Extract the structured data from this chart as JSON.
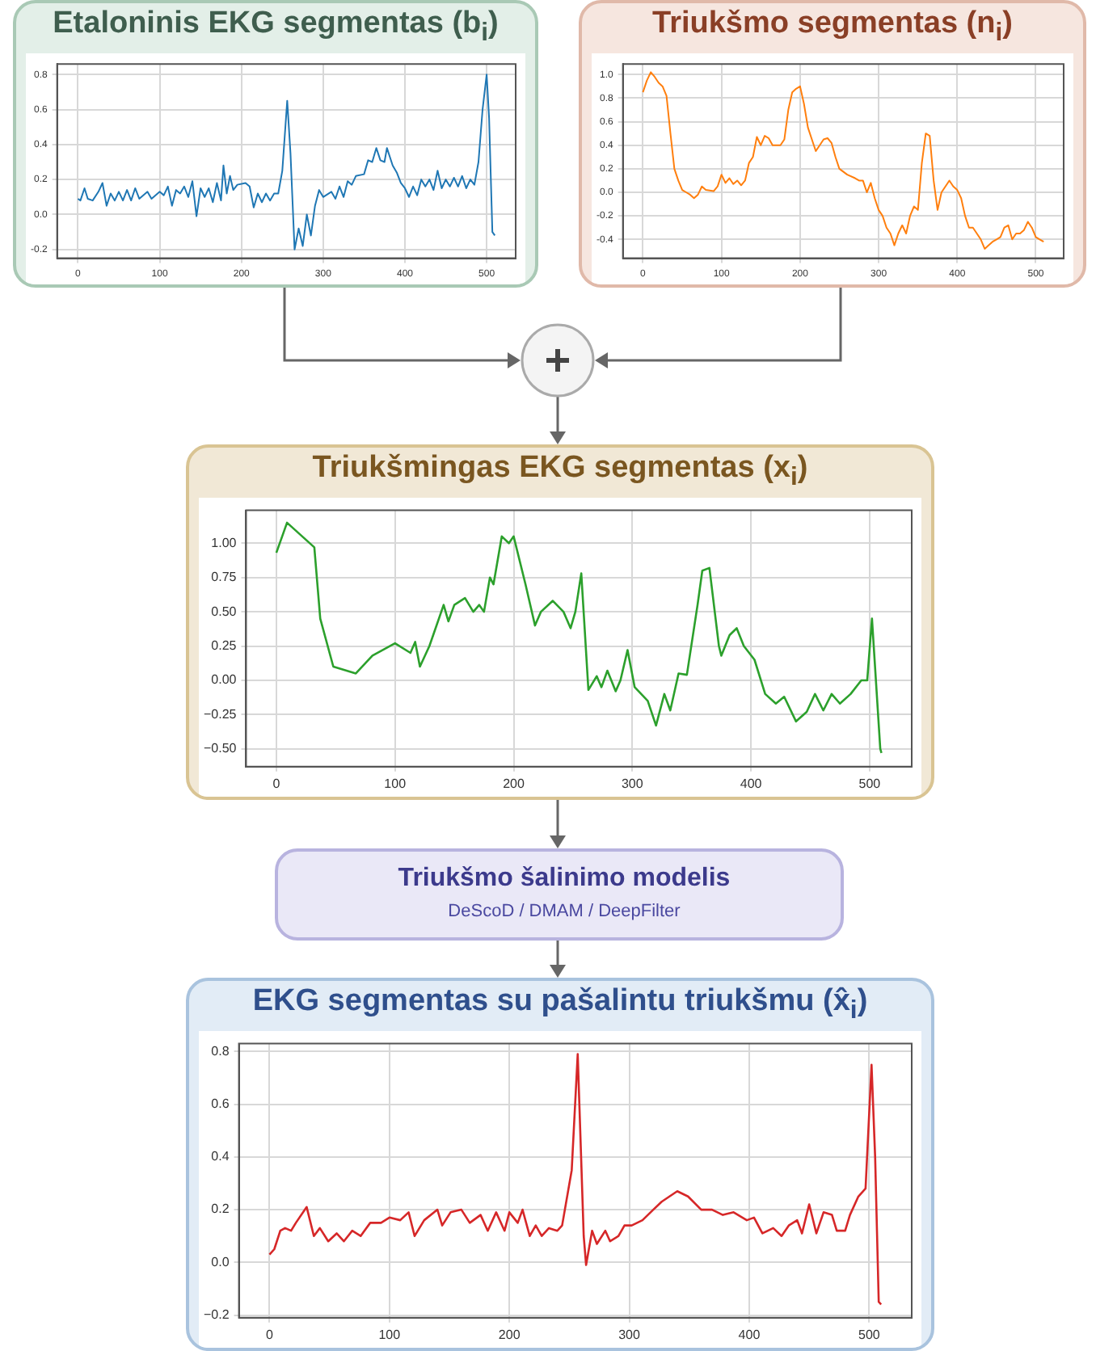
{
  "chart_data": [
    {
      "type": "line",
      "title": "Etaloninis EKG segmentas (b$_{i}$)",
      "xlim": [
        -25.5,
        535.5
      ],
      "xticks": [
        0,
        100,
        200,
        300,
        400,
        500
      ],
      "ylim": [
        -0.25,
        0.86
      ],
      "yticks": [
        {
          "value": -0.2,
          "label": "-0.2"
        },
        {
          "value": 0,
          "label": "0.0"
        },
        {
          "value": 0.2,
          "label": "0.2"
        },
        {
          "value": 0.4,
          "label": "0.4"
        },
        {
          "value": 0.6,
          "label": "0.6"
        },
        {
          "value": 0.8,
          "label": "0.8"
        }
      ],
      "grid": true,
      "marker": "none",
      "series": [
        {
          "color": "#1f77b4",
          "x": [
            0,
            3,
            8,
            12,
            18,
            25,
            30,
            35,
            40,
            45,
            50,
            55,
            60,
            65,
            70,
            75,
            85,
            90,
            100,
            105,
            110,
            115,
            120,
            125,
            130,
            135,
            140,
            145,
            150,
            155,
            160,
            165,
            170,
            175,
            178,
            182,
            186,
            190,
            195,
            205,
            210,
            215,
            220,
            225,
            230,
            235,
            240,
            245,
            250,
            256,
            260,
            265,
            270,
            275,
            280,
            285,
            290,
            295,
            300,
            310,
            315,
            320,
            325,
            330,
            335,
            340,
            350,
            355,
            360,
            365,
            370,
            375,
            378,
            385,
            390,
            395,
            400,
            405,
            410,
            415,
            420,
            425,
            430,
            435,
            440,
            445,
            450,
            455,
            460,
            465,
            470,
            475,
            480,
            485,
            490,
            495,
            500,
            503,
            507,
            510
          ],
          "values": [
            0.09,
            0.08,
            0.15,
            0.09,
            0.08,
            0.13,
            0.18,
            0.05,
            0.12,
            0.08,
            0.13,
            0.08,
            0.14,
            0.08,
            0.15,
            0.09,
            0.13,
            0.09,
            0.13,
            0.11,
            0.16,
            0.05,
            0.14,
            0.12,
            0.16,
            0.1,
            0.19,
            -0.01,
            0.15,
            0.1,
            0.15,
            0.07,
            0.18,
            0.08,
            0.28,
            0.12,
            0.22,
            0.14,
            0.17,
            0.18,
            0.16,
            0.04,
            0.12,
            0.07,
            0.12,
            0.08,
            0.12,
            0.12,
            0.25,
            0.65,
            0.35,
            -0.2,
            -0.08,
            -0.18,
            0.0,
            -0.12,
            0.05,
            0.14,
            0.1,
            0.13,
            0.09,
            0.16,
            0.1,
            0.19,
            0.17,
            0.22,
            0.23,
            0.31,
            0.3,
            0.38,
            0.31,
            0.3,
            0.38,
            0.28,
            0.24,
            0.18,
            0.15,
            0.1,
            0.16,
            0.11,
            0.2,
            0.16,
            0.2,
            0.14,
            0.25,
            0.15,
            0.2,
            0.16,
            0.21,
            0.16,
            0.22,
            0.15,
            0.2,
            0.17,
            0.3,
            0.6,
            0.8,
            0.55,
            -0.1,
            -0.12
          ]
        }
      ]
    },
    {
      "type": "line",
      "title": "Triukšmo segmentas (n$_{i}$)",
      "xlim": [
        -25.5,
        535.5
      ],
      "xticks": [
        0,
        100,
        200,
        300,
        400,
        500
      ],
      "ylim": [
        -0.56,
        1.09
      ],
      "yticks": [
        {
          "value": -0.4,
          "label": "-0.4"
        },
        {
          "value": -0.2,
          "label": "-0.2"
        },
        {
          "value": 0,
          "label": "0.0"
        },
        {
          "value": 0.2,
          "label": "0.2"
        },
        {
          "value": 0.4,
          "label": "0.4"
        },
        {
          "value": 0.6,
          "label": "0.6"
        },
        {
          "value": 0.8,
          "label": "0.8"
        },
        {
          "value": 1,
          "label": "1.0"
        }
      ],
      "grid": true,
      "marker": "none",
      "series": [
        {
          "color": "#ff7f0e",
          "x": [
            0,
            5,
            10,
            15,
            20,
            25,
            30,
            35,
            40,
            45,
            50,
            55,
            60,
            65,
            70,
            75,
            80,
            90,
            95,
            100,
            105,
            110,
            115,
            120,
            125,
            130,
            135,
            140,
            145,
            150,
            155,
            160,
            165,
            175,
            180,
            185,
            190,
            195,
            200,
            205,
            210,
            215,
            220,
            225,
            230,
            235,
            240,
            245,
            250,
            260,
            270,
            275,
            280,
            285,
            290,
            295,
            300,
            305,
            310,
            315,
            320,
            325,
            330,
            335,
            340,
            345,
            350,
            355,
            360,
            365,
            370,
            375,
            380,
            390,
            395,
            400,
            405,
            410,
            415,
            420,
            425,
            430,
            435,
            440,
            445,
            450,
            455,
            460,
            465,
            470,
            475,
            480,
            485,
            490,
            495,
            500,
            505,
            510
          ],
          "values": [
            0.85,
            0.95,
            1.02,
            0.98,
            0.93,
            0.9,
            0.82,
            0.5,
            0.2,
            0.1,
            0.02,
            0.0,
            -0.02,
            -0.05,
            -0.02,
            0.05,
            0.02,
            0.01,
            0.05,
            0.15,
            0.08,
            0.12,
            0.07,
            0.1,
            0.06,
            0.1,
            0.25,
            0.3,
            0.47,
            0.4,
            0.48,
            0.46,
            0.4,
            0.4,
            0.45,
            0.7,
            0.85,
            0.88,
            0.9,
            0.75,
            0.55,
            0.45,
            0.35,
            0.4,
            0.45,
            0.46,
            0.42,
            0.3,
            0.2,
            0.15,
            0.12,
            0.1,
            0.1,
            0.0,
            0.08,
            -0.05,
            -0.15,
            -0.2,
            -0.3,
            -0.35,
            -0.45,
            -0.35,
            -0.28,
            -0.35,
            -0.2,
            -0.12,
            -0.15,
            0.25,
            0.5,
            0.48,
            0.1,
            -0.15,
            0.0,
            0.1,
            0.05,
            0.02,
            -0.05,
            -0.2,
            -0.3,
            -0.3,
            -0.35,
            -0.4,
            -0.48,
            -0.45,
            -0.42,
            -0.4,
            -0.38,
            -0.3,
            -0.28,
            -0.4,
            -0.35,
            -0.35,
            -0.32,
            -0.25,
            -0.3,
            -0.38,
            -0.4,
            -0.42
          ]
        }
      ]
    },
    {
      "type": "line",
      "title": "Triukšmingas EKG segmentas (x$_{i}$)",
      "xlim": [
        -25.5,
        535.5
      ],
      "xticks": [
        0,
        100,
        200,
        300,
        400,
        500
      ],
      "ylim": [
        -0.63,
        1.24
      ],
      "yticks": [
        {
          "value": -0.5,
          "label": "−0.50"
        },
        {
          "value": -0.25,
          "label": "−0.25"
        },
        {
          "value": 0,
          "label": "0.00"
        },
        {
          "value": 0.25,
          "label": "0.25"
        },
        {
          "value": 0.5,
          "label": "0.50"
        },
        {
          "value": 0.75,
          "label": "0.75"
        },
        {
          "value": 1,
          "label": "1.00"
        }
      ],
      "grid": true,
      "marker": "none",
      "series": [
        {
          "color": "#2ca02c",
          "x": [
            0,
            9,
            32,
            37,
            48,
            67,
            81,
            100,
            113,
            117,
            121,
            129,
            141,
            145,
            150,
            159,
            166,
            171,
            175,
            180,
            183,
            190,
            196,
            200,
            210,
            218,
            223,
            233,
            242,
            248,
            252,
            257,
            263,
            270,
            274,
            279,
            286,
            290,
            296,
            302,
            313,
            320,
            327,
            332,
            339,
            346,
            355,
            359,
            365,
            373,
            375,
            382,
            388,
            394,
            403,
            412,
            421,
            428,
            438,
            447,
            454,
            461,
            468,
            475,
            484,
            493,
            498,
            502,
            509,
            510
          ],
          "values": [
            0.93,
            1.15,
            0.97,
            0.45,
            0.1,
            0.05,
            0.18,
            0.27,
            0.2,
            0.28,
            0.1,
            0.25,
            0.55,
            0.43,
            0.55,
            0.6,
            0.5,
            0.55,
            0.5,
            0.75,
            0.7,
            1.05,
            1.0,
            1.05,
            0.7,
            0.4,
            0.5,
            0.58,
            0.5,
            0.38,
            0.5,
            0.78,
            -0.07,
            0.03,
            -0.05,
            0.07,
            -0.08,
            0.0,
            0.22,
            -0.05,
            -0.15,
            -0.33,
            -0.1,
            -0.22,
            0.05,
            0.04,
            0.55,
            0.8,
            0.82,
            0.25,
            0.18,
            0.33,
            0.38,
            0.25,
            0.15,
            -0.1,
            -0.17,
            -0.12,
            -0.3,
            -0.23,
            -0.1,
            -0.22,
            -0.1,
            -0.17,
            -0.1,
            0.0,
            0.0,
            0.45,
            -0.5,
            -0.53
          ]
        }
      ]
    },
    {
      "type": "other",
      "title": "Triukšmo šalinimo modelis",
      "subtitle": "DeScoD / DMAM / DeepFilter"
    },
    {
      "type": "line",
      "title": "EKG segmentas su pašalintu triukšmu (x̂$_{i}$)",
      "xlim": [
        -25.5,
        535.5
      ],
      "xticks": [
        0,
        100,
        200,
        300,
        400,
        500
      ],
      "ylim": [
        -0.21,
        0.83
      ],
      "yticks": [
        {
          "value": -0.2,
          "label": "−0.2"
        },
        {
          "value": 0,
          "label": "0.0"
        },
        {
          "value": 0.2,
          "label": "0.2"
        },
        {
          "value": 0.4,
          "label": "0.4"
        },
        {
          "value": 0.6,
          "label": "0.6"
        },
        {
          "value": 0.8,
          "label": "0.8"
        }
      ],
      "grid": true,
      "marker": "none",
      "series": [
        {
          "color": "#d62728",
          "x": [
            0,
            4,
            9,
            13,
            18,
            22,
            31,
            37,
            42,
            49,
            56,
            62,
            69,
            76,
            84,
            93,
            100,
            109,
            116,
            121,
            129,
            140,
            144,
            151,
            160,
            167,
            176,
            182,
            189,
            196,
            200,
            207,
            211,
            217,
            222,
            227,
            233,
            240,
            244,
            252,
            257,
            262,
            264,
            269,
            273,
            280,
            284,
            291,
            296,
            302,
            311,
            320,
            327,
            340,
            349,
            360,
            369,
            378,
            387,
            398,
            404,
            411,
            420,
            427,
            433,
            440,
            444,
            450,
            456,
            462,
            469,
            473,
            480,
            484,
            491,
            497,
            502,
            505,
            508,
            510
          ],
          "values": [
            0.03,
            0.05,
            0.12,
            0.13,
            0.12,
            0.15,
            0.21,
            0.1,
            0.13,
            0.08,
            0.11,
            0.08,
            0.12,
            0.1,
            0.15,
            0.15,
            0.17,
            0.16,
            0.19,
            0.1,
            0.16,
            0.2,
            0.14,
            0.19,
            0.2,
            0.15,
            0.18,
            0.12,
            0.19,
            0.12,
            0.19,
            0.15,
            0.2,
            0.1,
            0.14,
            0.1,
            0.13,
            0.12,
            0.14,
            0.35,
            0.79,
            0.1,
            -0.01,
            0.12,
            0.07,
            0.12,
            0.08,
            0.1,
            0.14,
            0.14,
            0.16,
            0.2,
            0.23,
            0.27,
            0.25,
            0.2,
            0.2,
            0.18,
            0.19,
            0.16,
            0.17,
            0.11,
            0.13,
            0.1,
            0.14,
            0.16,
            0.11,
            0.22,
            0.11,
            0.19,
            0.18,
            0.12,
            0.12,
            0.18,
            0.25,
            0.28,
            0.75,
            0.4,
            -0.15,
            -0.16
          ]
        }
      ]
    }
  ]
}
